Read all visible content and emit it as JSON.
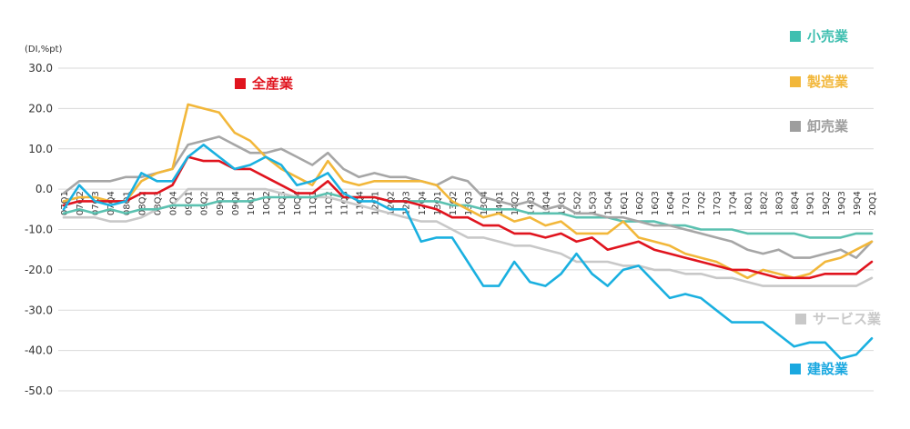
{
  "chart_data": {
    "type": "line",
    "unit_label": "(DI,%pt)",
    "ylim": [
      -50,
      30
    ],
    "y_ticks": [
      "30.0",
      "20.0",
      "10.0",
      "0.0",
      "-10.0",
      "-20.0",
      "-30.0",
      "-40.0",
      "-50.0"
    ],
    "y_tick_values": [
      30,
      20,
      10,
      0,
      -10,
      -20,
      -30,
      -40,
      -50
    ],
    "grid": true,
    "x": [
      "07Q1",
      "07Q2",
      "07Q3",
      "07Q4",
      "08Q1",
      "08Q2",
      "08Q3",
      "08Q4",
      "09Q1",
      "09Q2",
      "09Q3",
      "09Q4",
      "10Q1",
      "10Q2",
      "10Q3",
      "10Q4",
      "11Q1",
      "11Q2",
      "11Q3",
      "11Q4",
      "12Q1",
      "12Q2",
      "12Q3",
      "12Q4",
      "13Q1",
      "13Q2",
      "13Q3",
      "13Q4",
      "14Q1",
      "14Q2",
      "14Q3",
      "14Q4",
      "15Q1",
      "15Q2",
      "15Q3",
      "15Q4",
      "16Q1",
      "16Q2",
      "16Q3",
      "16Q4",
      "17Q1",
      "17Q2",
      "17Q3",
      "17Q4",
      "18Q1",
      "18Q2",
      "18Q3",
      "18Q4",
      "19Q1",
      "19Q2",
      "19Q3",
      "19Q4",
      "20Q1"
    ],
    "series": [
      {
        "name": "全産業",
        "color": "#e0141e",
        "values": [
          -4,
          -3,
          -3,
          -3,
          -3,
          -1,
          -1,
          1,
          8,
          7,
          7,
          5,
          5,
          3,
          1,
          -1,
          -1,
          2,
          -2,
          -2,
          -2,
          -3,
          -3,
          -4,
          -5,
          -7,
          -7,
          -9,
          -9,
          -11,
          -11,
          -12,
          -11,
          -13,
          -12,
          -15,
          -14,
          -13,
          -15,
          -16,
          -17,
          -18,
          -19,
          -20,
          -20,
          -21,
          -22,
          -22,
          -22,
          -21,
          -21,
          -21,
          -18
        ]
      },
      {
        "name": "製造業",
        "color": "#f2b73a",
        "values": [
          -3,
          -2,
          -2,
          -3,
          -3,
          2,
          4,
          5,
          21,
          20,
          19,
          14,
          12,
          8,
          5,
          3,
          1,
          7,
          2,
          1,
          2,
          2,
          2,
          2,
          1,
          -3,
          -5,
          -7,
          -6,
          -8,
          -7,
          -9,
          -8,
          -11,
          -11,
          -11,
          -8,
          -12,
          -13,
          -14,
          -16,
          -17,
          -18,
          -20,
          -22,
          -20,
          -21,
          -22,
          -21,
          -18,
          -17,
          -15,
          -13
        ]
      },
      {
        "name": "卸売業",
        "color": "#a6a6a6",
        "values": [
          -1,
          2,
          2,
          2,
          3,
          3,
          4,
          5,
          11,
          12,
          13,
          11,
          9,
          9,
          10,
          8,
          6,
          9,
          5,
          3,
          4,
          3,
          3,
          2,
          1,
          3,
          2,
          -2,
          -3,
          -4,
          -3,
          -5,
          -4,
          -6,
          -6,
          -7,
          -7,
          -8,
          -9,
          -9,
          -10,
          -11,
          -12,
          -13,
          -15,
          -16,
          -15,
          -17,
          -17,
          -16,
          -15,
          -17,
          -13
        ]
      },
      {
        "name": "小売業",
        "color": "#5bc1b0",
        "values": [
          -6,
          -5,
          -6,
          -5,
          -6,
          -5,
          -5,
          -4,
          -4,
          -4,
          -3,
          -3,
          -3,
          -2,
          -2,
          -2,
          -2,
          -1,
          -2,
          -2,
          -2,
          -3,
          -3,
          -3,
          -3,
          -4,
          -4,
          -5,
          -5,
          -5,
          -6,
          -6,
          -6,
          -7,
          -7,
          -7,
          -8,
          -8,
          -8,
          -9,
          -9,
          -10,
          -10,
          -10,
          -11,
          -11,
          -11,
          -11,
          -12,
          -12,
          -12,
          -11,
          -11
        ]
      },
      {
        "name": "サービス業",
        "color": "#c8c8c8",
        "values": [
          -7,
          -7,
          -7,
          -8,
          -8,
          -7,
          -5,
          -4,
          0,
          0,
          0,
          0,
          0,
          0,
          -1,
          -2,
          -2,
          -2,
          -3,
          -4,
          -5,
          -6,
          -7,
          -8,
          -8,
          -10,
          -12,
          -12,
          -13,
          -14,
          -14,
          -15,
          -16,
          -18,
          -18,
          -18,
          -19,
          -19,
          -20,
          -20,
          -21,
          -21,
          -22,
          -22,
          -23,
          -24,
          -24,
          -24,
          -24,
          -24,
          -24,
          -24,
          -22
        ]
      },
      {
        "name": "建設業",
        "color": "#1ab0e0",
        "values": [
          -5,
          1,
          -3,
          -4,
          -3,
          4,
          2,
          2,
          8,
          11,
          8,
          5,
          6,
          8,
          6,
          1,
          2,
          4,
          -1,
          -3,
          -3,
          -5,
          -5,
          -13,
          -12,
          -12,
          -18,
          -24,
          -24,
          -18,
          -23,
          -24,
          -21,
          -16,
          -21,
          -24,
          -20,
          -19,
          -23,
          -27,
          -26,
          -27,
          -30,
          -33,
          -33,
          -33,
          -36,
          -39,
          -38,
          -38,
          -42,
          -41,
          -37
        ]
      }
    ],
    "legend": [
      {
        "label": "小売業",
        "color": "#3fbfb0",
        "position": "top-right"
      },
      {
        "label": "製造業",
        "color": "#f2b73a",
        "position": "right"
      },
      {
        "label": "卸売業",
        "color": "#9e9e9e",
        "position": "right"
      },
      {
        "label": "全産業",
        "color": "#e0141e",
        "position": "inline-top"
      },
      {
        "label": "サービス業",
        "color": "#c8c8c8",
        "position": "bottom-right"
      },
      {
        "label": "建設業",
        "color": "#1aa8e0",
        "position": "bottom-right"
      }
    ]
  }
}
